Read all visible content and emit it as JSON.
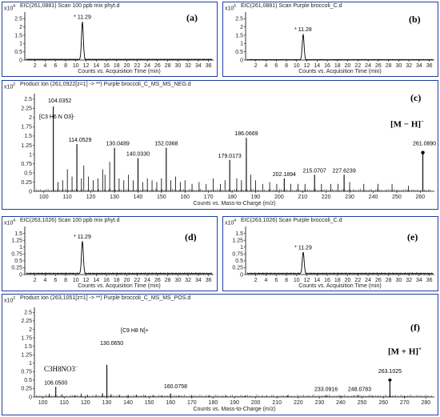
{
  "colors": {
    "border": "#1f3fa0",
    "trace": "#000000"
  },
  "chart_data": [
    {
      "id": "a",
      "type": "line",
      "panel_label": "(a)",
      "header": "EIC(261,0881) Scan 100 ppb mix phyt.d",
      "scale_base": "x10",
      "scale_exp": "4",
      "xlabel": "Counts vs. Acquisition Time (min)",
      "xlim": [
        0,
        37
      ],
      "ylim": [
        0,
        2.9
      ],
      "xticks": [
        2,
        4,
        6,
        8,
        10,
        12,
        14,
        16,
        18,
        20,
        22,
        24,
        26,
        28,
        30,
        32,
        34,
        36
      ],
      "yticks": [
        0,
        0.5,
        1,
        1.5,
        2,
        2.5
      ],
      "peak": {
        "x": 11.29,
        "height": 2.3,
        "width": 0.55,
        "label": "* 11.29"
      },
      "baseline": 0.04
    },
    {
      "id": "b",
      "type": "line",
      "panel_label": "(b)",
      "header": "EIC(261,0881) Scan Purple broccoli_C.d",
      "scale_base": "x10",
      "scale_exp": "5",
      "xlabel": "Counts vs. Acquisition Time (min)",
      "xlim": [
        0,
        37
      ],
      "ylim": [
        0,
        2.9
      ],
      "xticks": [
        2,
        4,
        6,
        8,
        10,
        12,
        14,
        16,
        18,
        20,
        22,
        24,
        26,
        28,
        30,
        32,
        34,
        36
      ],
      "yticks": [
        0,
        0.5,
        1,
        1.5,
        2,
        2.5
      ],
      "peak": {
        "x": 11.28,
        "height": 1.55,
        "width": 0.55,
        "label": "* 11.28"
      },
      "baseline": 0.02
    },
    {
      "id": "c",
      "type": "bar",
      "panel_label": "(c)",
      "header": "Product Ion (261,0922[z=1] -> **) Purple broccoli_C_MS_MS_NEG.d",
      "scale_base": "x10",
      "scale_exp": "2",
      "xlabel": "Counts vs. Mass-to-Charge (m/z)",
      "xlim": [
        96,
        266
      ],
      "ylim": [
        0,
        2.65
      ],
      "xticks": [
        100,
        110,
        120,
        130,
        140,
        150,
        160,
        170,
        180,
        190,
        200,
        210,
        220,
        230,
        240,
        250,
        260
      ],
      "yticks": [
        0,
        0.25,
        0.5,
        0.75,
        1,
        1.25,
        1.5,
        1.75,
        2,
        2.25,
        2.5
      ],
      "peaks": [
        {
          "x": 104.0352,
          "y": 2.3,
          "label": "104.0352"
        },
        {
          "x": 114.0529,
          "y": 1.28,
          "label": "114.0529"
        },
        {
          "x": 130.0489,
          "y": 1.18,
          "label": "130.0489"
        },
        {
          "x": 140.033,
          "y": 0.9,
          "label": "140.0330"
        },
        {
          "x": 152.0368,
          "y": 1.18,
          "label": "152.0368"
        },
        {
          "x": 179.0173,
          "y": 0.85,
          "label": "179.0173"
        },
        {
          "x": 186.0669,
          "y": 1.45,
          "label": "186.0669"
        },
        {
          "x": 202.1894,
          "y": 0.35,
          "label": "202.1894"
        },
        {
          "x": 215.0707,
          "y": 0.45,
          "label": "215.0707"
        },
        {
          "x": 227.6239,
          "y": 0.45,
          "label": "227.6239"
        },
        {
          "x": 261.089,
          "y": 1.05,
          "label": "261.0890"
        }
      ],
      "minor_peaks": [
        [
          106,
          0.25
        ],
        [
          108,
          0.3
        ],
        [
          110,
          0.6
        ],
        [
          112,
          0.4
        ],
        [
          116,
          0.35
        ],
        [
          117,
          0.7
        ],
        [
          119,
          0.4
        ],
        [
          121,
          0.3
        ],
        [
          123,
          0.35
        ],
        [
          125,
          0.6
        ],
        [
          126,
          0.45
        ],
        [
          128,
          0.8
        ],
        [
          132,
          0.35
        ],
        [
          134,
          0.3
        ],
        [
          136,
          0.45
        ],
        [
          138,
          0.3
        ],
        [
          142,
          0.25
        ],
        [
          144,
          0.35
        ],
        [
          146,
          0.3
        ],
        [
          148,
          0.25
        ],
        [
          150,
          0.35
        ],
        [
          154,
          0.3
        ],
        [
          156,
          0.4
        ],
        [
          158,
          0.25
        ],
        [
          160,
          0.3
        ],
        [
          163,
          0.2
        ],
        [
          166,
          0.25
        ],
        [
          169,
          0.2
        ],
        [
          172,
          0.35
        ],
        [
          175,
          0.2
        ],
        [
          177,
          0.3
        ],
        [
          182,
          0.35
        ],
        [
          184,
          0.3
        ],
        [
          188,
          0.45
        ],
        [
          190,
          0.3
        ],
        [
          193,
          0.2
        ],
        [
          196,
          0.25
        ],
        [
          199,
          0.2
        ],
        [
          205,
          0.2
        ],
        [
          208,
          0.2
        ],
        [
          211,
          0.2
        ],
        [
          218,
          0.2
        ],
        [
          222,
          0.2
        ],
        [
          225,
          0.2
        ],
        [
          230,
          0.25
        ],
        [
          236,
          0.2
        ],
        [
          242,
          0.2
        ],
        [
          248,
          0.2
        ],
        [
          255,
          0.15
        ]
      ],
      "annotations": {
        "fragment": "[C3 H6 N O3]-",
        "ion": "[M − H]",
        "ion_charge": "−"
      }
    },
    {
      "id": "d",
      "type": "line",
      "panel_label": "(d)",
      "header": "EIC(263,1026) Scan 100 ppb mix phyt.d",
      "scale_base": "x10",
      "scale_exp": "4",
      "xlabel": "Counts vs. Acquisition Time (min)",
      "xlim": [
        0,
        37
      ],
      "ylim": [
        0,
        1.75
      ],
      "xticks": [
        2,
        4,
        6,
        8,
        10,
        12,
        14,
        16,
        18,
        20,
        22,
        24,
        26,
        28,
        30,
        32,
        34,
        36
      ],
      "yticks": [
        0,
        0.25,
        0.5,
        0.75,
        1,
        1.25,
        1.5
      ],
      "peak": {
        "x": 11.29,
        "height": 1.2,
        "width": 0.55,
        "label": "* 11.29"
      },
      "baseline": 0.04
    },
    {
      "id": "e",
      "type": "line",
      "panel_label": "(e)",
      "header": "EIC(263,1026) Scan Purple broccoli_C.d",
      "scale_base": "x10",
      "scale_exp": "4",
      "xlabel": "Counts vs. Acquisition Time (min)",
      "xlim": [
        0,
        37
      ],
      "ylim": [
        0,
        1.75
      ],
      "xticks": [
        2,
        4,
        6,
        8,
        10,
        12,
        14,
        16,
        18,
        20,
        22,
        24,
        26,
        28,
        30,
        32,
        34,
        36
      ],
      "yticks": [
        0,
        0.25,
        0.5,
        0.75,
        1,
        1.25,
        1.5
      ],
      "peak": {
        "x": 11.29,
        "height": 0.8,
        "width": 0.55,
        "label": "* 11.29"
      },
      "baseline": 0.04
    },
    {
      "id": "f",
      "type": "bar",
      "panel_label": "(f)",
      "header": "Product Ion (263,1051[z=1] -> **) Purple broccoli_C_MS_MS_POS.d",
      "scale_base": "x10",
      "scale_exp": "2",
      "xlabel": "Counts vs. Mass-to-Charge (m/z)",
      "xlim": [
        96,
        284
      ],
      "ylim": [
        0,
        2.65
      ],
      "xticks": [
        100,
        110,
        120,
        130,
        140,
        150,
        160,
        170,
        180,
        190,
        200,
        210,
        220,
        230,
        240,
        250,
        260,
        270,
        280
      ],
      "yticks": [
        0,
        0.25,
        0.5,
        0.75,
        1,
        1.25,
        1.5,
        1.75,
        2,
        2.25,
        2.5
      ],
      "peaks": [
        {
          "x": 106.05,
          "y": 0.3,
          "label": "106.0500"
        },
        {
          "x": 130.065,
          "y": 0.95,
          "label": "130.0650"
        },
        {
          "x": 160.0758,
          "y": 0.1,
          "label": "160.0758"
        },
        {
          "x": 233.0916,
          "y": 0.06,
          "label": "233.0916"
        },
        {
          "x": 248.0783,
          "y": 0.06,
          "label": "248.0783"
        },
        {
          "x": 263.1025,
          "y": 0.5,
          "label": "263.1025"
        }
      ],
      "minor_peaks": [
        [
          103,
          0.1
        ],
        [
          109,
          0.08
        ],
        [
          115,
          0.06
        ],
        [
          118,
          0.1
        ],
        [
          121,
          0.06
        ],
        [
          125,
          0.07
        ],
        [
          128,
          0.12
        ],
        [
          132,
          0.08
        ],
        [
          136,
          0.06
        ],
        [
          140,
          0.05
        ],
        [
          144,
          0.07
        ],
        [
          148,
          0.05
        ],
        [
          152,
          0.06
        ],
        [
          156,
          0.05
        ],
        [
          164,
          0.05
        ],
        [
          170,
          0.04
        ],
        [
          178,
          0.05
        ],
        [
          186,
          0.04
        ],
        [
          195,
          0.04
        ],
        [
          205,
          0.04
        ],
        [
          215,
          0.04
        ],
        [
          225,
          0.04
        ],
        [
          240,
          0.04
        ],
        [
          255,
          0.04
        ],
        [
          270,
          0.03
        ]
      ],
      "annotations": {
        "fragment": "[C9 H8 N]+",
        "formula_left": "C3H8NO3",
        "formula_left_charge": "−",
        "ion": "[M + H]",
        "ion_charge": "+"
      }
    }
  ]
}
